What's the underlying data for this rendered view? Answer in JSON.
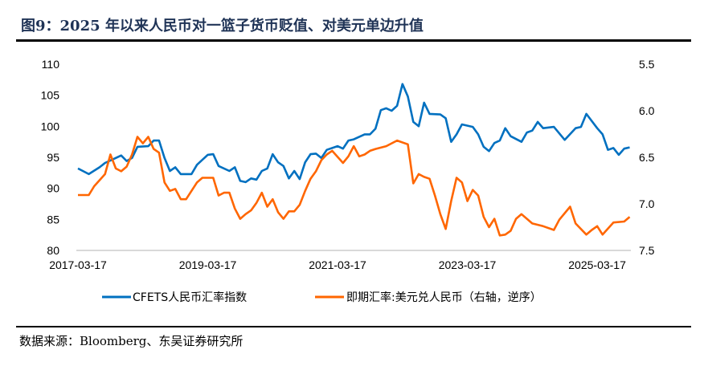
{
  "title": "图9：2025 年以来人民币对一篮子货币贬值、对美元单边升值",
  "source": "数据来源：Bloomberg、东吴证券研究所",
  "chart_data": {
    "type": "line",
    "title": "图9：2025 年以来人民币对一篮子货币贬值、对美元单边升值",
    "x_ticks": [
      "2017-03-17",
      "2019-03-17",
      "2021-03-17",
      "2023-03-17",
      "2025-03-17"
    ],
    "xlim": [
      "2017-03-17",
      "2025-09-17"
    ],
    "y_left": {
      "ylim": [
        80,
        110
      ],
      "ticks": [
        80,
        85,
        90,
        95,
        100,
        105,
        110
      ]
    },
    "y_right": {
      "ylim": [
        5.5,
        7.5
      ],
      "ticks": [
        "5.5",
        "6.0",
        "6.5",
        "7.0",
        "7.5"
      ],
      "inverted": true
    },
    "grid": false,
    "legend_position": "bottom",
    "series": [
      {
        "name": "CFETS人民币汇率指数",
        "axis": "left",
        "color": "#0070c0",
        "x": [
          "2017-03",
          "2017-05",
          "2017-07",
          "2017-08",
          "2017-09",
          "2017-11",
          "2017-12",
          "2018-01",
          "2018-02",
          "2018-04",
          "2018-05",
          "2018-06",
          "2018-07",
          "2018-08",
          "2018-09",
          "2018-10",
          "2018-12",
          "2019-01",
          "2019-03",
          "2019-04",
          "2019-05",
          "2019-07",
          "2019-08",
          "2019-09",
          "2019-10",
          "2019-11",
          "2019-12",
          "2020-01",
          "2020-02",
          "2020-03",
          "2020-04",
          "2020-05",
          "2020-06",
          "2020-07",
          "2020-08",
          "2020-09",
          "2020-10",
          "2020-11",
          "2020-12",
          "2021-01",
          "2021-03",
          "2021-04",
          "2021-05",
          "2021-06",
          "2021-08",
          "2021-09",
          "2021-10",
          "2021-11",
          "2021-12",
          "2022-01",
          "2022-02",
          "2022-03",
          "2022-04",
          "2022-05",
          "2022-06",
          "2022-07",
          "2022-08",
          "2022-10",
          "2022-11",
          "2022-12",
          "2023-01",
          "2023-02",
          "2023-04",
          "2023-05",
          "2023-06",
          "2023-07",
          "2023-08",
          "2023-09",
          "2023-10",
          "2023-11",
          "2024-01",
          "2024-02",
          "2024-03",
          "2024-04",
          "2024-05",
          "2024-07",
          "2024-09",
          "2024-11",
          "2024-12",
          "2025-01",
          "2025-03",
          "2025-04",
          "2025-05",
          "2025-06",
          "2025-07",
          "2025-08",
          "2025-09"
        ],
        "values": [
          93.2,
          92.3,
          93.4,
          94.1,
          94.5,
          95.3,
          94.4,
          94.9,
          96.7,
          96.8,
          97.7,
          97.7,
          94.9,
          92.8,
          93.4,
          92.3,
          92.3,
          93.8,
          95.4,
          95.5,
          93.6,
          92.8,
          93.4,
          91.2,
          91.0,
          91.6,
          91.4,
          92.8,
          93.2,
          95.5,
          94.2,
          93.6,
          91.6,
          92.8,
          91.5,
          94.2,
          95.5,
          95.6,
          94.9,
          96.2,
          96.8,
          96.4,
          97.7,
          97.9,
          98.7,
          98.7,
          99.6,
          102.6,
          102.9,
          102.5,
          103.3,
          106.8,
          104.8,
          100.7,
          100.0,
          103.8,
          102.0,
          101.9,
          101.3,
          97.5,
          98.7,
          100.3,
          99.9,
          98.7,
          96.7,
          96.0,
          97.3,
          97.7,
          99.7,
          98.4,
          97.5,
          99.0,
          99.3,
          100.7,
          99.7,
          99.9,
          97.8,
          99.7,
          99.9,
          102.0,
          99.7,
          98.7,
          96.2,
          96.5,
          95.4,
          96.4,
          96.6
        ]
      },
      {
        "name": "即期汇率:美元兑人民币（右轴，逆序）",
        "axis": "right",
        "color": "#ff6600",
        "x": [
          "2017-03",
          "2017-05",
          "2017-06",
          "2017-08",
          "2017-09",
          "2017-10",
          "2017-11",
          "2017-12",
          "2018-01",
          "2018-02",
          "2018-03",
          "2018-04",
          "2018-05",
          "2018-06",
          "2018-07",
          "2018-08",
          "2018-09",
          "2018-10",
          "2018-11",
          "2019-01",
          "2019-02",
          "2019-04",
          "2019-05",
          "2019-06",
          "2019-07",
          "2019-08",
          "2019-09",
          "2019-10",
          "2019-11",
          "2019-12",
          "2020-01",
          "2020-02",
          "2020-03",
          "2020-04",
          "2020-05",
          "2020-06",
          "2020-07",
          "2020-08",
          "2020-09",
          "2020-10",
          "2020-11",
          "2020-12",
          "2021-01",
          "2021-02",
          "2021-04",
          "2021-05",
          "2021-06",
          "2021-07",
          "2021-08",
          "2021-09",
          "2021-10",
          "2021-12",
          "2022-01",
          "2022-02",
          "2022-04",
          "2022-05",
          "2022-06",
          "2022-07",
          "2022-08",
          "2022-09",
          "2022-10",
          "2022-11",
          "2022-12",
          "2023-01",
          "2023-02",
          "2023-03",
          "2023-04",
          "2023-05",
          "2023-06",
          "2023-07",
          "2023-08",
          "2023-09",
          "2023-10",
          "2023-11",
          "2023-12",
          "2024-01",
          "2024-03",
          "2024-05",
          "2024-07",
          "2024-08",
          "2024-10",
          "2024-11",
          "2025-01",
          "2025-02",
          "2025-03",
          "2025-04",
          "2025-06",
          "2025-08",
          "2025-09"
        ],
        "values": [
          6.905,
          6.905,
          6.81,
          6.68,
          6.47,
          6.62,
          6.65,
          6.6,
          6.47,
          6.28,
          6.35,
          6.28,
          6.41,
          6.45,
          6.77,
          6.86,
          6.84,
          6.95,
          6.95,
          6.77,
          6.72,
          6.72,
          6.91,
          6.88,
          6.88,
          7.05,
          7.16,
          7.11,
          7.07,
          6.99,
          6.88,
          7.03,
          6.95,
          7.09,
          7.16,
          7.08,
          7.08,
          7.01,
          6.86,
          6.73,
          6.65,
          6.53,
          6.47,
          6.43,
          6.56,
          6.49,
          6.38,
          6.49,
          6.47,
          6.43,
          6.41,
          6.38,
          6.35,
          6.32,
          6.36,
          6.78,
          6.68,
          6.71,
          6.73,
          6.91,
          7.11,
          7.27,
          6.97,
          6.72,
          6.77,
          6.97,
          6.85,
          6.91,
          7.14,
          7.25,
          7.16,
          7.34,
          7.33,
          7.29,
          7.16,
          7.11,
          7.21,
          7.24,
          7.28,
          7.17,
          7.03,
          7.21,
          7.33,
          7.28,
          7.24,
          7.33,
          7.2,
          7.19,
          7.14
        ]
      }
    ]
  }
}
